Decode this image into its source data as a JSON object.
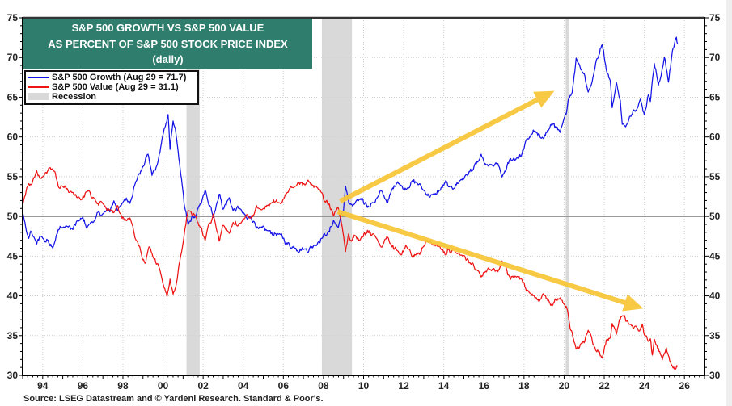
{
  "chart_data": {
    "type": "line",
    "title": "S&P 500 GROWTH VS S&P 500 VALUE AS PERCENT OF S&P 500 STOCK PRICE INDEX (daily)",
    "title_lines": [
      "S&P 500 GROWTH VS S&P 500 VALUE",
      "AS PERCENT OF S&P 500 STOCK PRICE INDEX",
      "(daily)"
    ],
    "title_background": "#2f7d6d",
    "xlabel": "",
    "ylabel": "",
    "xlim": [
      1993.0,
      2027.0
    ],
    "ylim": [
      30,
      75
    ],
    "xtick_values": [
      1994,
      1996,
      1998,
      2000,
      2002,
      2004,
      2006,
      2008,
      2010,
      2012,
      2014,
      2016,
      2018,
      2020,
      2022,
      2024,
      2026
    ],
    "xtick_labels": [
      "94",
      "96",
      "98",
      "00",
      "02",
      "04",
      "06",
      "08",
      "10",
      "12",
      "14",
      "16",
      "18",
      "20",
      "22",
      "24",
      "26"
    ],
    "yticks": [
      30,
      35,
      40,
      45,
      50,
      55,
      60,
      65,
      70,
      75
    ],
    "y_axis_both_sides": true,
    "reference_line": 50,
    "grid": true,
    "legend": {
      "position": "top-left",
      "recession_label": "Recession",
      "recession_color": "#d9d9d9"
    },
    "series": [
      {
        "name": "S&P 500 Growth",
        "legend_label": "S&P 500 Growth (Aug 29 = 71.7)",
        "last_date": "Aug 29",
        "last_value": 71.7,
        "color": "#1414e6",
        "points": [
          [
            1993.0,
            50.3
          ],
          [
            1993.15,
            48.7
          ],
          [
            1993.3,
            47.4
          ],
          [
            1993.4,
            48.1
          ],
          [
            1993.7,
            46.4
          ],
          [
            1993.9,
            47.6
          ],
          [
            1994.1,
            47.0
          ],
          [
            1994.3,
            46.9
          ],
          [
            1994.5,
            46.5
          ],
          [
            1994.7,
            47.9
          ],
          [
            1994.9,
            48.6
          ],
          [
            1995.2,
            48.7
          ],
          [
            1995.5,
            48.4
          ],
          [
            1995.7,
            49.1
          ],
          [
            1996.0,
            49.6
          ],
          [
            1996.2,
            48.7
          ],
          [
            1996.5,
            49.4
          ],
          [
            1996.75,
            50.1
          ],
          [
            1997.15,
            50.5
          ],
          [
            1997.35,
            50.6
          ],
          [
            1997.55,
            52.0
          ],
          [
            1997.75,
            51.0
          ],
          [
            1997.95,
            51.3
          ],
          [
            1998.1,
            52.2
          ],
          [
            1998.35,
            52.0
          ],
          [
            1998.55,
            53.9
          ],
          [
            1998.75,
            55.1
          ],
          [
            1998.95,
            55.9
          ],
          [
            1999.25,
            57.9
          ],
          [
            1999.45,
            55.1
          ],
          [
            1999.65,
            56.2
          ],
          [
            1999.85,
            58.4
          ],
          [
            2000.05,
            61.0
          ],
          [
            2000.25,
            62.5
          ],
          [
            2000.35,
            58.3
          ],
          [
            2000.5,
            62.2
          ],
          [
            2000.65,
            60.3
          ],
          [
            2000.85,
            56.2
          ],
          [
            2001.05,
            51.3
          ],
          [
            2001.25,
            48.6
          ],
          [
            2001.45,
            49.8
          ],
          [
            2001.65,
            50.0
          ],
          [
            2001.85,
            51.3
          ],
          [
            2002.1,
            53.2
          ],
          [
            2002.25,
            51.5
          ],
          [
            2002.5,
            50.1
          ],
          [
            2002.8,
            53.0
          ],
          [
            2003.0,
            51.1
          ],
          [
            2003.3,
            52.3
          ],
          [
            2003.5,
            50.8
          ],
          [
            2003.8,
            51.0
          ],
          [
            2004.2,
            49.5
          ],
          [
            2004.4,
            50.0
          ],
          [
            2004.8,
            48.3
          ],
          [
            2005.2,
            48.0
          ],
          [
            2005.7,
            47.8
          ],
          [
            2006.3,
            46.4
          ],
          [
            2006.7,
            46.2
          ],
          [
            2007.2,
            45.9
          ],
          [
            2007.5,
            46.3
          ],
          [
            2007.9,
            47.5
          ],
          [
            2008.3,
            48.1
          ],
          [
            2008.5,
            49.6
          ],
          [
            2008.7,
            48.6
          ],
          [
            2009.0,
            50.8
          ],
          [
            2009.1,
            53.9
          ],
          [
            2009.3,
            51.3
          ],
          [
            2009.6,
            51.3
          ],
          [
            2009.9,
            52.2
          ],
          [
            2010.3,
            51.3
          ],
          [
            2010.9,
            53.0
          ],
          [
            2011.2,
            51.8
          ],
          [
            2011.7,
            54.7
          ],
          [
            2012.0,
            53.5
          ],
          [
            2012.4,
            54.5
          ],
          [
            2012.8,
            53.9
          ],
          [
            2013.1,
            53.0
          ],
          [
            2013.5,
            52.5
          ],
          [
            2013.9,
            53.5
          ],
          [
            2014.1,
            54.2
          ],
          [
            2014.3,
            53.3
          ],
          [
            2014.8,
            54.5
          ],
          [
            2015.3,
            55.6
          ],
          [
            2015.9,
            57.3
          ],
          [
            2016.1,
            56.1
          ],
          [
            2016.7,
            56.4
          ],
          [
            2016.9,
            54.7
          ],
          [
            2017.3,
            56.9
          ],
          [
            2017.9,
            57.9
          ],
          [
            2018.1,
            59.3
          ],
          [
            2018.5,
            60.8
          ],
          [
            2018.8,
            59.6
          ],
          [
            2019.1,
            60.6
          ],
          [
            2019.5,
            61.7
          ],
          [
            2019.8,
            60.2
          ],
          [
            2020.1,
            62.7
          ],
          [
            2020.2,
            64.7
          ],
          [
            2020.4,
            66.0
          ],
          [
            2020.5,
            67.7
          ],
          [
            2020.6,
            70.1
          ],
          [
            2020.8,
            69.1
          ],
          [
            2021.0,
            68.1
          ],
          [
            2021.2,
            65.7
          ],
          [
            2021.4,
            67.1
          ],
          [
            2021.6,
            69.4
          ],
          [
            2021.7,
            70.1
          ],
          [
            2021.9,
            72.1
          ],
          [
            2022.1,
            68.8
          ],
          [
            2022.3,
            67.1
          ],
          [
            2022.4,
            63.7
          ],
          [
            2022.6,
            66.8
          ],
          [
            2022.8,
            64.7
          ],
          [
            2022.9,
            61.7
          ],
          [
            2023.1,
            61.0
          ],
          [
            2023.3,
            63.0
          ],
          [
            2023.5,
            63.7
          ],
          [
            2023.8,
            64.7
          ],
          [
            2024.0,
            63.0
          ],
          [
            2024.2,
            65.4
          ],
          [
            2024.3,
            64.9
          ],
          [
            2024.5,
            69.4
          ],
          [
            2024.7,
            66.4
          ],
          [
            2024.8,
            67.4
          ],
          [
            2025.0,
            70.3
          ],
          [
            2025.2,
            66.8
          ],
          [
            2025.4,
            70.8
          ],
          [
            2025.6,
            72.5
          ],
          [
            2025.66,
            71.7
          ]
        ]
      },
      {
        "name": "S&P 500 Value",
        "legend_label": "S&P 500 Value (Aug 29 = 31.1)",
        "last_date": "Aug 29",
        "last_value": 31.1,
        "color": "#ee1414",
        "points": [
          [
            1993.0,
            51.6
          ],
          [
            1993.2,
            53.5
          ],
          [
            1993.5,
            54.5
          ],
          [
            1993.7,
            55.9
          ],
          [
            1993.9,
            54.7
          ],
          [
            1994.1,
            55.2
          ],
          [
            1994.3,
            55.9
          ],
          [
            1994.6,
            55.2
          ],
          [
            1994.8,
            53.8
          ],
          [
            1995.1,
            53.7
          ],
          [
            1995.3,
            53.2
          ],
          [
            1995.7,
            52.8
          ],
          [
            1995.9,
            52.3
          ],
          [
            1996.3,
            53.3
          ],
          [
            1996.5,
            52.1
          ],
          [
            1996.75,
            52.0
          ],
          [
            1997.15,
            51.3
          ],
          [
            1997.55,
            50.5
          ],
          [
            1997.75,
            51.0
          ],
          [
            1998.1,
            49.6
          ],
          [
            1998.35,
            49.5
          ],
          [
            1998.6,
            47.3
          ],
          [
            1998.8,
            46.2
          ],
          [
            1999.1,
            44.0
          ],
          [
            1999.3,
            46.4
          ],
          [
            1999.6,
            44.5
          ],
          [
            1999.85,
            43.0
          ],
          [
            2000.05,
            41.0
          ],
          [
            2000.2,
            40.0
          ],
          [
            2000.35,
            42.3
          ],
          [
            2000.5,
            40.1
          ],
          [
            2000.7,
            42.0
          ],
          [
            2000.9,
            45.4
          ],
          [
            2001.1,
            48.8
          ],
          [
            2001.25,
            51.2
          ],
          [
            2001.45,
            50.5
          ],
          [
            2001.65,
            50.0
          ],
          [
            2001.85,
            48.9
          ],
          [
            2002.1,
            47.0
          ],
          [
            2002.25,
            49.1
          ],
          [
            2002.5,
            50.0
          ],
          [
            2002.8,
            46.7
          ],
          [
            2003.0,
            48.8
          ],
          [
            2003.3,
            47.9
          ],
          [
            2003.5,
            49.1
          ],
          [
            2003.8,
            49.1
          ],
          [
            2004.2,
            50.5
          ],
          [
            2004.4,
            49.6
          ],
          [
            2004.7,
            51.0
          ],
          [
            2005.0,
            51.5
          ],
          [
            2005.4,
            51.7
          ],
          [
            2005.8,
            51.8
          ],
          [
            2006.1,
            52.5
          ],
          [
            2006.3,
            53.5
          ],
          [
            2006.6,
            53.5
          ],
          [
            2007.0,
            53.9
          ],
          [
            2007.3,
            54.2
          ],
          [
            2007.6,
            53.5
          ],
          [
            2007.9,
            52.7
          ],
          [
            2008.1,
            51.7
          ],
          [
            2008.3,
            51.5
          ],
          [
            2008.5,
            50.0
          ],
          [
            2008.7,
            51.2
          ],
          [
            2008.9,
            49.5
          ],
          [
            2009.1,
            45.5
          ],
          [
            2009.25,
            47.8
          ],
          [
            2009.4,
            47.1
          ],
          [
            2009.6,
            48.1
          ],
          [
            2009.8,
            47.2
          ],
          [
            2010.3,
            47.9
          ],
          [
            2010.5,
            47.6
          ],
          [
            2010.9,
            46.4
          ],
          [
            2011.2,
            47.4
          ],
          [
            2011.5,
            46.1
          ],
          [
            2011.8,
            44.9
          ],
          [
            2012.1,
            45.9
          ],
          [
            2012.4,
            45.0
          ],
          [
            2012.8,
            45.5
          ],
          [
            2013.1,
            46.6
          ],
          [
            2013.5,
            46.7
          ],
          [
            2013.8,
            46.2
          ],
          [
            2014.1,
            45.4
          ],
          [
            2014.2,
            46.2
          ],
          [
            2014.6,
            45.4
          ],
          [
            2015.0,
            44.9
          ],
          [
            2015.4,
            44.0
          ],
          [
            2015.9,
            42.8
          ],
          [
            2016.2,
            43.7
          ],
          [
            2016.7,
            43.3
          ],
          [
            2016.9,
            44.7
          ],
          [
            2017.3,
            42.5
          ],
          [
            2017.9,
            42.0
          ],
          [
            2018.3,
            40.3
          ],
          [
            2018.7,
            39.8
          ],
          [
            2019.0,
            39.9
          ],
          [
            2019.4,
            38.9
          ],
          [
            2019.8,
            40.1
          ],
          [
            2020.0,
            39.5
          ],
          [
            2020.1,
            38.9
          ],
          [
            2020.2,
            37.6
          ],
          [
            2020.3,
            35.7
          ],
          [
            2020.5,
            34.1
          ],
          [
            2020.6,
            33.1
          ],
          [
            2020.8,
            33.5
          ],
          [
            2021.0,
            34.0
          ],
          [
            2021.2,
            35.5
          ],
          [
            2021.3,
            35.0
          ],
          [
            2021.5,
            33.5
          ],
          [
            2021.7,
            33.0
          ],
          [
            2021.9,
            31.8
          ],
          [
            2022.1,
            34.1
          ],
          [
            2022.3,
            34.7
          ],
          [
            2022.4,
            36.4
          ],
          [
            2022.6,
            35.3
          ],
          [
            2022.8,
            37.0
          ],
          [
            2023.0,
            37.7
          ],
          [
            2023.3,
            36.0
          ],
          [
            2023.5,
            35.7
          ],
          [
            2023.7,
            35.2
          ],
          [
            2023.9,
            36.4
          ],
          [
            2024.0,
            34.8
          ],
          [
            2024.3,
            34.1
          ],
          [
            2024.4,
            32.4
          ],
          [
            2024.5,
            34.3
          ],
          [
            2024.7,
            33.5
          ],
          [
            2024.9,
            31.8
          ],
          [
            2025.1,
            33.5
          ],
          [
            2025.3,
            31.6
          ],
          [
            2025.5,
            30.7
          ],
          [
            2025.66,
            31.1
          ]
        ]
      }
    ],
    "recessions": [
      [
        2001.17,
        2001.83
      ],
      [
        2007.92,
        2009.42
      ],
      [
        2020.08,
        2020.25
      ]
    ],
    "annotations": [
      {
        "type": "arrow",
        "name": "growth-trend-arrow",
        "color": "#f8c73a",
        "from": [
          2008.83,
          51.9
        ],
        "to": [
          2019.52,
          65.8
        ]
      },
      {
        "type": "arrow",
        "name": "value-trend-arrow",
        "color": "#f8c73a",
        "from": [
          2008.71,
          50.6
        ],
        "to": [
          2023.95,
          38.4
        ]
      }
    ],
    "source": "Source: LSEG Datastream and © Yardeni Research. Standard & Poor's."
  }
}
